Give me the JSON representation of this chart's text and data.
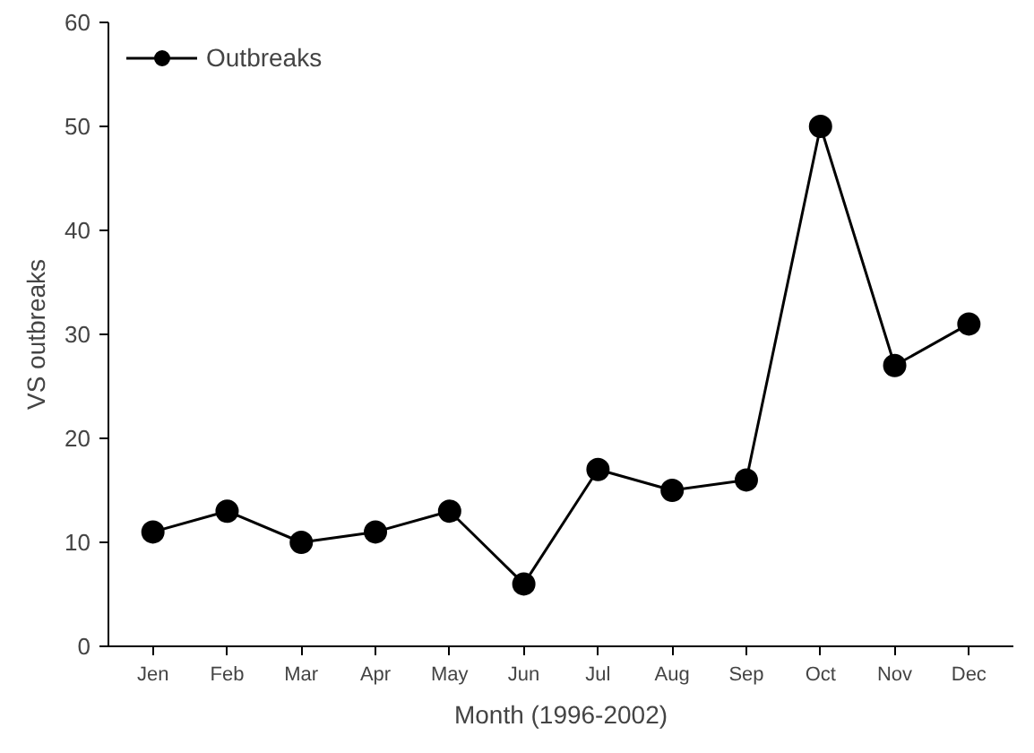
{
  "chart_data": {
    "type": "line",
    "xlabel": "Month (1996-2002)",
    "ylabel": "VS outbreaks",
    "categories": [
      "Jen",
      "Feb",
      "Mar",
      "Apr",
      "May",
      "Jun",
      "Jul",
      "Aug",
      "Sep",
      "Oct",
      "Nov",
      "Dec"
    ],
    "series": [
      {
        "name": "Outbreaks",
        "color": "#000000",
        "values": [
          11,
          13,
          10,
          11,
          13,
          6,
          17,
          15,
          16,
          50,
          27,
          31
        ]
      }
    ],
    "ylim": [
      0,
      60
    ],
    "yticks": [
      0,
      10,
      20,
      30,
      40,
      50,
      60
    ],
    "grid": false,
    "legend": "top left",
    "marker": "circle",
    "line_style": "solid"
  }
}
